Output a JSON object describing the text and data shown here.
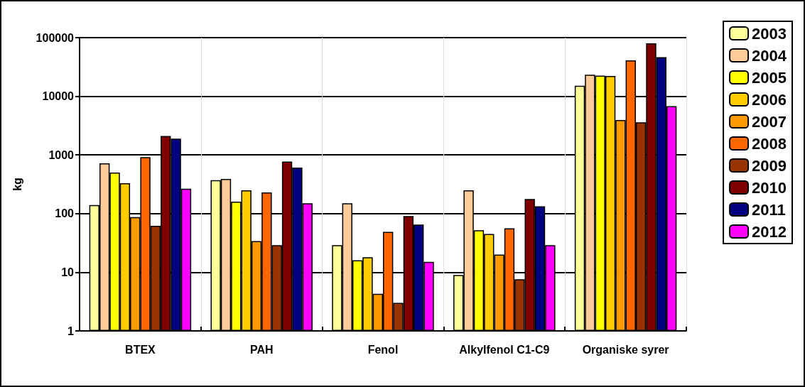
{
  "chart_data": {
    "type": "bar",
    "ylabel": "kg",
    "categories": [
      "BTEX",
      "PAH",
      "Fenol",
      "Alkylfenol C1-C9",
      "Organiske syrer"
    ],
    "series": [
      {
        "name": "2003",
        "color": "#ffff99",
        "values": [
          140,
          370,
          29,
          9,
          15100
        ]
      },
      {
        "name": "2004",
        "color": "#ffcc99",
        "values": [
          720,
          390,
          150,
          250,
          23300
        ]
      },
      {
        "name": "2005",
        "color": "#ffff00",
        "values": [
          500,
          160,
          16,
          52,
          22500
        ]
      },
      {
        "name": "2006",
        "color": "#ffcc00",
        "values": [
          330,
          250,
          18,
          45,
          22200
        ]
      },
      {
        "name": "2007",
        "color": "#ff9900",
        "values": [
          87,
          34,
          4.3,
          20,
          3950
        ]
      },
      {
        "name": "2008",
        "color": "#ff6600",
        "values": [
          920,
          230,
          49,
          56,
          40900
        ]
      },
      {
        "name": "2009",
        "color": "#993300",
        "values": [
          62,
          29,
          3,
          7.6,
          3600
        ]
      },
      {
        "name": "2010",
        "color": "#800000",
        "values": [
          2100,
          770,
          91,
          177,
          80000
        ]
      },
      {
        "name": "2011",
        "color": "#000080",
        "values": [
          1900,
          610,
          65,
          133,
          46600
        ]
      },
      {
        "name": "2012",
        "color": "#ff00ff",
        "values": [
          265,
          150,
          15,
          29,
          6800
        ]
      }
    ],
    "ylim": [
      1,
      100000
    ],
    "yticks": [
      1,
      10,
      100,
      1000,
      10000,
      100000
    ],
    "log": true,
    "grid": true,
    "legend": "right"
  }
}
